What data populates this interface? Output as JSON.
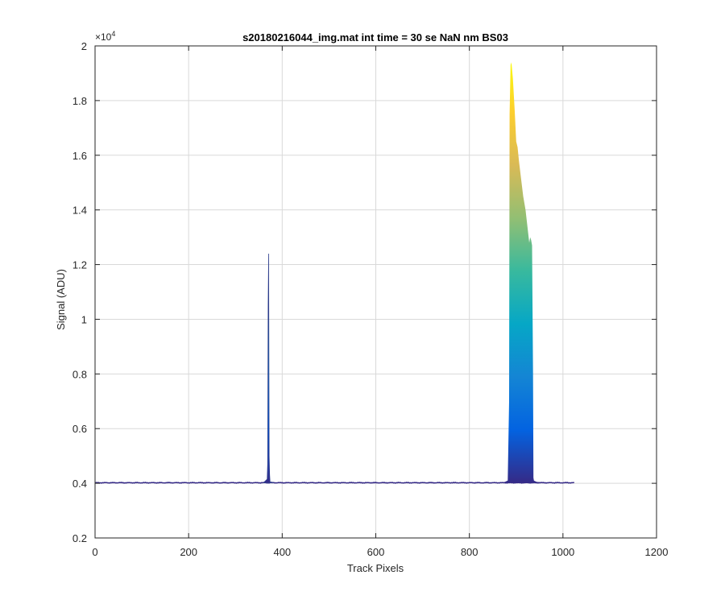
{
  "chart_data": {
    "type": "area",
    "title": "s20180216044_img.mat int time = 30 se  NaN nm BS03",
    "xlabel": "Track Pixels",
    "ylabel": "Signal (ADU)",
    "xlim": [
      0,
      1200
    ],
    "ylim": [
      2000,
      20000
    ],
    "x_ticks": [
      0,
      200,
      400,
      600,
      800,
      1000,
      1200
    ],
    "y_ticks": [
      0.2,
      0.4,
      0.6,
      0.8,
      1,
      1.2,
      1.4,
      1.6,
      1.8,
      2
    ],
    "y_tick_labels": [
      "0.2",
      "0.4",
      "0.6",
      "0.8",
      "1",
      "1.2",
      "1.4",
      "1.6",
      "1.8",
      "2"
    ],
    "y_multiplier_base": "×10",
    "y_multiplier_exp": "4",
    "grid": true,
    "colormap": [
      "#352a87",
      "#0363e1",
      "#1485d4",
      "#06a7c6",
      "#38b99e",
      "#92bf73",
      "#d9ba56",
      "#fcce2e",
      "#f9fb0e"
    ],
    "baseline_value": 4020,
    "x_range": [
      0,
      1024
    ],
    "features": [
      {
        "name": "spike",
        "x": [
          360,
          368,
          369,
          370,
          371,
          372,
          373,
          374,
          382
        ],
        "y": [
          4020,
          4150,
          4700,
          10500,
          12400,
          5000,
          4300,
          4050,
          4020
        ]
      },
      {
        "name": "band",
        "x": [
          872,
          882,
          885,
          886,
          888,
          890,
          893,
          897,
          900,
          903,
          906,
          910,
          915,
          920,
          924,
          928,
          930,
          932,
          934,
          936,
          937,
          938,
          940,
          944,
          960
        ],
        "y": [
          4020,
          4100,
          7000,
          17500,
          19300,
          19400,
          18800,
          17600,
          16500,
          16300,
          15800,
          15200,
          14500,
          14000,
          13400,
          12800,
          13000,
          12900,
          12700,
          8000,
          4200,
          4100,
          4080,
          4050,
          4030
        ]
      }
    ]
  }
}
